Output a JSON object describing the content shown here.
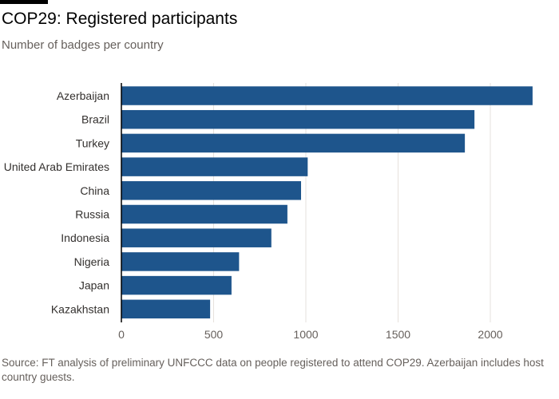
{
  "title": "COP29: Registered participants",
  "subtitle": "Number of badges per country",
  "source": "Source: FT analysis of preliminary UNFCCC data on people registered to attend COP29. Azerbaijan includes host country guests.",
  "colors": {
    "bar": "#1e558c",
    "grid": "#e6e1dc",
    "axis": "#66605c",
    "text": "#33302e"
  },
  "chart_data": {
    "type": "bar",
    "orientation": "horizontal",
    "categories": [
      "Azerbaijan",
      "Brazil",
      "Turkey",
      "United Arab Emirates",
      "China",
      "Russia",
      "Indonesia",
      "Nigeria",
      "Japan",
      "Kazakhstan"
    ],
    "values": [
      2229,
      1914,
      1862,
      1010,
      974,
      900,
      813,
      638,
      597,
      481
    ],
    "xticks": [
      0,
      500,
      1000,
      1500,
      2000
    ],
    "xlim": [
      0,
      2250
    ],
    "grid": true
  }
}
